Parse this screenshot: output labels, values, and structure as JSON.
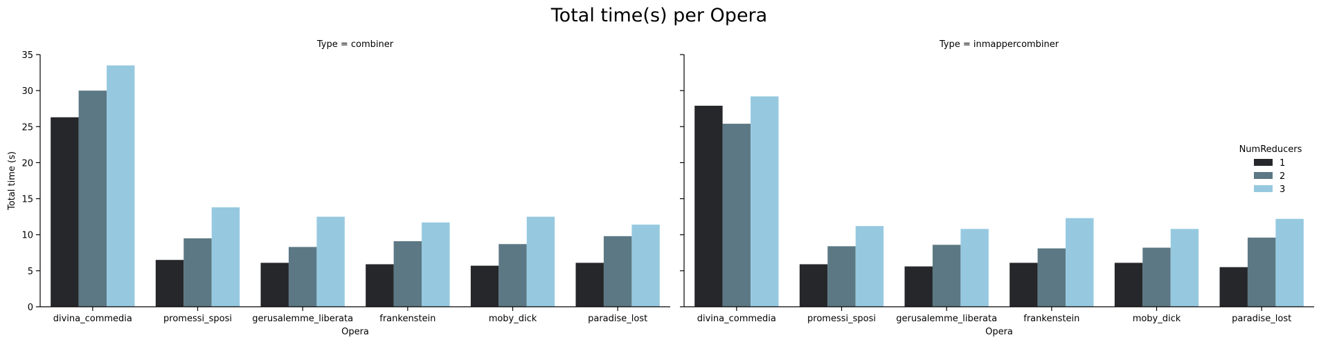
{
  "chart_data": {
    "type": "bar",
    "title": "Total time(s) per Opera",
    "ylabel": "Total time (s)",
    "xlabel": "Opera",
    "ylim": [
      0,
      35
    ],
    "yticks": [
      0,
      5,
      10,
      15,
      20,
      25,
      30,
      35
    ],
    "categories": [
      "divina_commedia",
      "promessi_sposi",
      "gerusalemme_liberata",
      "frankenstein",
      "moby_dick",
      "paradise_lost"
    ],
    "legend": {
      "title": "NumReducers",
      "placement": "right",
      "entries": [
        "1",
        "2",
        "3"
      ]
    },
    "colors": [
      "#25272b",
      "#5c7884",
      "#96c9e0"
    ],
    "facets": [
      {
        "title": "Type = combiner",
        "series": [
          {
            "name": "1",
            "values": [
              26.3,
              6.5,
              6.1,
              5.9,
              5.7,
              6.1
            ]
          },
          {
            "name": "2",
            "values": [
              30.0,
              9.5,
              8.3,
              9.1,
              8.7,
              9.8
            ]
          },
          {
            "name": "3",
            "values": [
              33.5,
              13.8,
              12.5,
              11.7,
              12.5,
              11.4
            ]
          }
        ]
      },
      {
        "title": "Type = inmappercombiner",
        "series": [
          {
            "name": "1",
            "values": [
              27.9,
              5.9,
              5.6,
              6.1,
              6.1,
              5.5
            ]
          },
          {
            "name": "2",
            "values": [
              25.4,
              8.4,
              8.6,
              8.1,
              8.2,
              9.6
            ]
          },
          {
            "name": "3",
            "values": [
              29.2,
              11.2,
              10.8,
              12.3,
              10.8,
              12.2
            ]
          }
        ]
      }
    ]
  }
}
